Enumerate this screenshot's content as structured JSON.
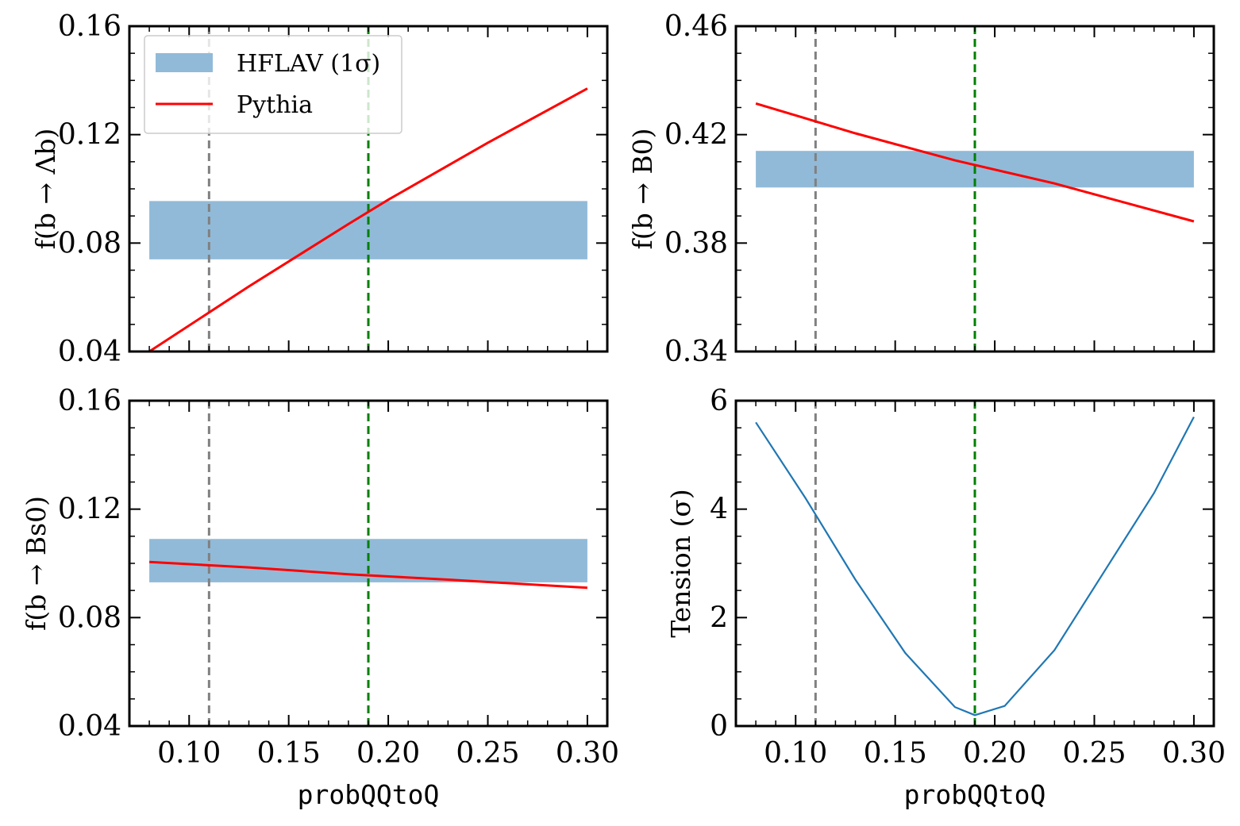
{
  "colors": {
    "band": "#91bad8",
    "pythia": "#ff0000",
    "tension": "#1f77b4",
    "vline_gray": "#808080",
    "vline_green": "#008000"
  },
  "legend": {
    "band_label": "HFLAV (1σ)",
    "line_label": "Pythia"
  },
  "chart_data": [
    {
      "id": "lambda_b",
      "type": "line",
      "ylabel": "f(b → Λb)",
      "xlabel": "",
      "xlim": [
        0.07,
        0.31
      ],
      "ylim": [
        0.04,
        0.16
      ],
      "yticks": [
        0.04,
        0.08,
        0.12,
        0.16
      ],
      "ytick_labels": [
        "0.04",
        "0.08",
        "0.12",
        "0.16"
      ],
      "show_xtick_labels": false,
      "xticks": [
        0.1,
        0.15,
        0.2,
        0.25,
        0.3
      ],
      "xtick_labels": [
        "0.10",
        "0.15",
        "0.20",
        "0.25",
        "0.30"
      ],
      "band": {
        "x": [
          0.08,
          0.3
        ],
        "y": [
          0.074,
          0.0955
        ]
      },
      "series": [
        {
          "name": "Pythia",
          "x": [
            0.08,
            0.13,
            0.18,
            0.2,
            0.25,
            0.3
          ],
          "y": [
            0.04,
            0.064,
            0.087,
            0.096,
            0.117,
            0.137
          ]
        }
      ],
      "vlines": [
        0.11,
        0.19
      ],
      "legend": true
    },
    {
      "id": "b0",
      "type": "line",
      "ylabel": "f(b → B0)",
      "xlabel": "",
      "xlim": [
        0.07,
        0.31
      ],
      "ylim": [
        0.34,
        0.46
      ],
      "yticks": [
        0.34,
        0.38,
        0.42,
        0.46
      ],
      "ytick_labels": [
        "0.34",
        "0.38",
        "0.42",
        "0.46"
      ],
      "show_xtick_labels": false,
      "xticks": [
        0.1,
        0.15,
        0.2,
        0.25,
        0.3
      ],
      "xtick_labels": [
        "0.10",
        "0.15",
        "0.20",
        "0.25",
        "0.30"
      ],
      "band": {
        "x": [
          0.08,
          0.3
        ],
        "y": [
          0.4005,
          0.414
        ]
      },
      "series": [
        {
          "name": "Pythia",
          "x": [
            0.08,
            0.13,
            0.18,
            0.23,
            0.3
          ],
          "y": [
            0.4315,
            0.4205,
            0.4105,
            0.402,
            0.388
          ]
        }
      ],
      "vlines": [
        0.11,
        0.19
      ],
      "legend": false
    },
    {
      "id": "bs0",
      "type": "line",
      "ylabel": "f(b → Bs0)",
      "xlabel": "probQQtoQ",
      "xlim": [
        0.07,
        0.31
      ],
      "ylim": [
        0.04,
        0.16
      ],
      "yticks": [
        0.04,
        0.08,
        0.12,
        0.16
      ],
      "ytick_labels": [
        "0.04",
        "0.08",
        "0.12",
        "0.16"
      ],
      "show_xtick_labels": true,
      "xticks": [
        0.1,
        0.15,
        0.2,
        0.25,
        0.3
      ],
      "xtick_labels": [
        "0.10",
        "0.15",
        "0.20",
        "0.25",
        "0.30"
      ],
      "band": {
        "x": [
          0.08,
          0.3
        ],
        "y": [
          0.093,
          0.109
        ]
      },
      "series": [
        {
          "name": "Pythia",
          "x": [
            0.08,
            0.13,
            0.18,
            0.23,
            0.3
          ],
          "y": [
            0.1005,
            0.0985,
            0.096,
            0.094,
            0.091
          ]
        }
      ],
      "vlines": [
        0.11,
        0.19
      ],
      "legend": false
    },
    {
      "id": "tension",
      "type": "line",
      "ylabel": "Tension (σ)",
      "xlabel": "probQQtoQ",
      "xlim": [
        0.07,
        0.31
      ],
      "ylim": [
        0,
        6
      ],
      "yticks": [
        0,
        2,
        4,
        6
      ],
      "ytick_labels": [
        "0",
        "2",
        "4",
        "6"
      ],
      "show_xtick_labels": true,
      "xticks": [
        0.1,
        0.15,
        0.2,
        0.25,
        0.3
      ],
      "xtick_labels": [
        "0.10",
        "0.15",
        "0.20",
        "0.25",
        "0.30"
      ],
      "band": null,
      "series": [
        {
          "name": "Tension",
          "x": [
            0.08,
            0.105,
            0.13,
            0.155,
            0.18,
            0.19,
            0.205,
            0.23,
            0.255,
            0.28,
            0.3
          ],
          "y": [
            5.6,
            4.2,
            2.7,
            1.35,
            0.35,
            0.2,
            0.37,
            1.4,
            2.85,
            4.3,
            5.7
          ]
        }
      ],
      "vlines": [
        0.11,
        0.19
      ],
      "legend": false
    }
  ]
}
